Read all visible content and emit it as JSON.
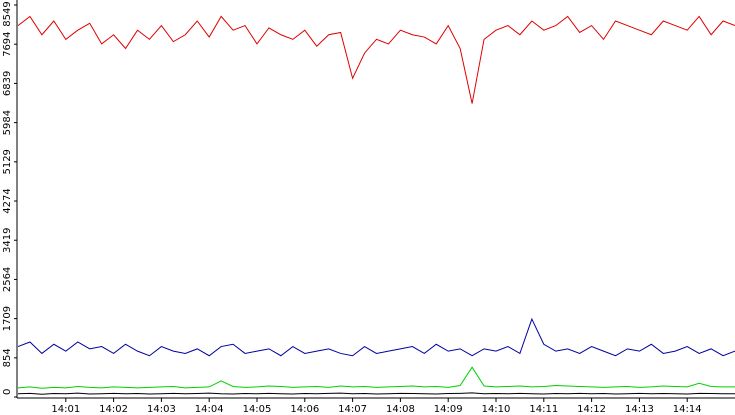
{
  "chart_data": {
    "type": "line",
    "x": [
      0,
      0.25,
      0.5,
      0.75,
      1,
      1.25,
      1.5,
      1.75,
      2,
      2.25,
      2.5,
      2.75,
      3,
      3.25,
      3.5,
      3.75,
      4,
      4.25,
      4.5,
      4.75,
      5,
      5.25,
      5.5,
      5.75,
      6,
      6.25,
      6.5,
      6.75,
      7,
      7.25,
      7.5,
      7.75,
      8,
      8.25,
      8.5,
      8.75,
      9,
      9.25,
      9.5,
      9.75,
      10,
      10.25,
      10.5,
      10.75,
      11,
      11.25,
      11.5,
      11.75,
      12,
      12.25,
      12.5,
      12.75,
      13,
      13.25,
      13.5,
      13.75,
      14,
      14.25,
      14.5,
      14.75,
      15
    ],
    "series": [
      {
        "color": "#e00000",
        "values": [
          8100,
          8300,
          7900,
          8200,
          7800,
          8000,
          8150,
          7700,
          7900,
          7600,
          8000,
          7800,
          8100,
          7750,
          7900,
          8200,
          7850,
          8300,
          8000,
          8100,
          7700,
          8050,
          7900,
          7800,
          8000,
          7650,
          7900,
          7950,
          6950,
          7500,
          7800,
          7700,
          8000,
          7900,
          7850,
          7700,
          8100,
          7600,
          6400,
          7800,
          8000,
          8100,
          7900,
          8200,
          8000,
          8100,
          8300,
          7950,
          8100,
          7800,
          8200,
          8100,
          8000,
          7900,
          8200,
          8100,
          8000,
          8300,
          7900,
          8200,
          8100
        ]
      },
      {
        "color": "#0000a0",
        "values": [
          1100,
          1200,
          950,
          1150,
          1000,
          1200,
          1050,
          1100,
          950,
          1150,
          1000,
          900,
          1100,
          1000,
          950,
          1050,
          900,
          1100,
          1150,
          950,
          1000,
          1050,
          900,
          1100,
          950,
          1000,
          1050,
          950,
          900,
          1100,
          950,
          1000,
          1050,
          1100,
          950,
          1150,
          1000,
          1050,
          900,
          1050,
          1000,
          1100,
          950,
          1700,
          1150,
          1000,
          1050,
          950,
          1100,
          1000,
          900,
          1050,
          1000,
          1150,
          950,
          1000,
          1100,
          950,
          1050,
          900,
          1000
        ]
      },
      {
        "color": "#00d000",
        "values": [
          200,
          220,
          190,
          210,
          200,
          230,
          210,
          200,
          220,
          210,
          200,
          210,
          220,
          230,
          200,
          210,
          220,
          350,
          230,
          210,
          220,
          240,
          230,
          210,
          220,
          230,
          210,
          240,
          220,
          230,
          210,
          220,
          230,
          240,
          220,
          230,
          210,
          250,
          650,
          240,
          220,
          230,
          240,
          220,
          230,
          250,
          240,
          230,
          220,
          210,
          220,
          230,
          210,
          220,
          240,
          230,
          220,
          300,
          230,
          220,
          220
        ]
      },
      {
        "color": "#000000",
        "values": [
          70,
          80,
          60,
          75,
          70,
          85,
          65,
          70,
          80,
          70,
          75,
          65,
          70,
          80,
          70,
          75,
          85,
          70,
          65,
          75,
          70,
          80,
          70,
          65,
          75,
          70,
          80,
          85,
          70,
          75,
          65,
          70,
          80,
          75,
          70,
          65,
          75,
          80,
          90,
          70,
          75,
          70,
          80,
          70,
          65,
          75,
          70,
          80,
          70,
          75,
          65,
          70,
          80,
          70,
          75,
          70,
          65,
          80,
          75,
          70,
          70
        ]
      }
    ],
    "xlim": [
      0,
      15
    ],
    "xticks": [
      {
        "value": 1,
        "label": "14:01"
      },
      {
        "value": 2,
        "label": "14:02"
      },
      {
        "value": 3,
        "label": "14:03"
      },
      {
        "value": 4,
        "label": "14:04"
      },
      {
        "value": 5,
        "label": "14:05"
      },
      {
        "value": 6,
        "label": "14:06"
      },
      {
        "value": 7,
        "label": "14:07"
      },
      {
        "value": 8,
        "label": "14:08"
      },
      {
        "value": 9,
        "label": "14:09"
      },
      {
        "value": 10,
        "label": "14:10"
      },
      {
        "value": 11,
        "label": "14:11"
      },
      {
        "value": 12,
        "label": "14:12"
      },
      {
        "value": 13,
        "label": "14:13"
      },
      {
        "value": 14,
        "label": "14:14"
      }
    ],
    "ylim": [
      0,
      8549
    ],
    "yticks": [
      0,
      854,
      1709,
      2564,
      3419,
      4274,
      5129,
      5984,
      6839,
      7694,
      8549
    ]
  }
}
